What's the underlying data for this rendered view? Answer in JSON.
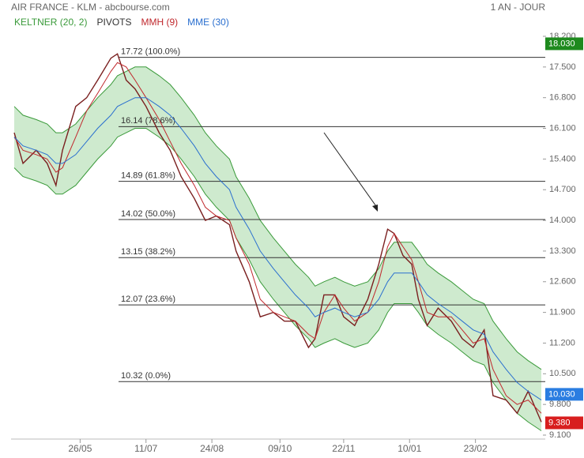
{
  "chart_data": {
    "type": "stock",
    "title": "AIR FRANCE - KLM - abcbourse.com",
    "period": "1 AN - JOUR",
    "xlim": [
      0,
      240
    ],
    "xticks": [
      {
        "value": 30,
        "label": "26/05"
      },
      {
        "value": 60,
        "label": "11/07"
      },
      {
        "value": 90,
        "label": "24/08"
      },
      {
        "value": 121,
        "label": "09/10"
      },
      {
        "value": 150,
        "label": "22/11"
      },
      {
        "value": 180,
        "label": "10/01"
      },
      {
        "value": 210,
        "label": "23/02"
      }
    ],
    "ylim": [
      9.1,
      18.2
    ],
    "yticks": [
      {
        "value": 18.2,
        "label": "18.200"
      },
      {
        "value": 17.5,
        "label": "17.500"
      },
      {
        "value": 16.8,
        "label": "16.800"
      },
      {
        "value": 16.1,
        "label": "16.100"
      },
      {
        "value": 15.4,
        "label": "15.400"
      },
      {
        "value": 14.7,
        "label": "14.700"
      },
      {
        "value": 14.0,
        "label": "14.000"
      },
      {
        "value": 13.3,
        "label": "13.300"
      },
      {
        "value": 12.6,
        "label": "12.600"
      },
      {
        "value": 11.9,
        "label": "11.900"
      },
      {
        "value": 11.2,
        "label": "11.200"
      },
      {
        "value": 10.5,
        "label": "10.500"
      },
      {
        "value": 9.8,
        "label": "9.800"
      },
      {
        "value": 9.1,
        "label": "9.100"
      }
    ],
    "x": [
      0,
      4,
      10,
      15,
      19,
      22,
      28,
      33,
      38,
      44,
      47,
      51,
      55,
      60,
      66,
      71,
      76,
      82,
      87,
      92,
      98,
      101,
      107,
      112,
      118,
      123,
      128,
      134,
      137,
      141,
      146,
      150,
      155,
      161,
      166,
      170,
      173,
      177,
      181,
      184,
      188,
      193,
      199,
      204,
      209,
      214,
      218,
      224,
      229,
      234,
      240
    ],
    "price": {
      "color": "#7a1f1f",
      "values": [
        16.0,
        15.3,
        15.6,
        15.3,
        14.8,
        15.6,
        16.6,
        16.8,
        17.2,
        17.7,
        17.8,
        17.2,
        17.0,
        16.6,
        16.0,
        15.6,
        15.0,
        14.5,
        14.0,
        14.1,
        13.9,
        13.3,
        12.6,
        11.8,
        11.9,
        11.7,
        11.7,
        11.1,
        11.3,
        12.3,
        12.3,
        11.8,
        11.6,
        12.2,
        13.0,
        13.8,
        13.7,
        13.2,
        13.0,
        12.2,
        11.6,
        12.0,
        11.7,
        11.3,
        11.1,
        11.5,
        10.0,
        9.9,
        9.6,
        10.1,
        9.4
      ]
    },
    "series": [
      {
        "name": "KELTNER (20, 2)",
        "color": "#3a9a3a",
        "upper": [
          16.6,
          16.4,
          16.3,
          16.2,
          16.0,
          16.0,
          16.2,
          16.5,
          16.8,
          17.1,
          17.3,
          17.4,
          17.5,
          17.5,
          17.3,
          17.1,
          16.8,
          16.4,
          16.0,
          15.7,
          15.4,
          15.0,
          14.5,
          14.0,
          13.6,
          13.3,
          13.0,
          12.7,
          12.5,
          12.6,
          12.7,
          12.6,
          12.5,
          12.6,
          12.9,
          13.3,
          13.5,
          13.5,
          13.5,
          13.3,
          13.0,
          12.8,
          12.6,
          12.4,
          12.2,
          12.1,
          11.7,
          11.3,
          11.0,
          10.8,
          10.6
        ],
        "lower": [
          15.2,
          15.0,
          14.9,
          14.8,
          14.6,
          14.6,
          14.8,
          15.1,
          15.4,
          15.7,
          15.9,
          16.0,
          16.1,
          16.1,
          15.9,
          15.7,
          15.4,
          15.0,
          14.6,
          14.3,
          14.0,
          13.6,
          13.1,
          12.6,
          12.2,
          11.9,
          11.6,
          11.3,
          11.1,
          11.2,
          11.3,
          11.2,
          11.1,
          11.2,
          11.5,
          11.9,
          12.1,
          12.1,
          12.1,
          11.9,
          11.6,
          11.4,
          11.2,
          11.0,
          10.8,
          10.7,
          10.3,
          9.9,
          9.6,
          9.4,
          9.2
        ]
      },
      {
        "name": "PIVOTS",
        "color": "#333333",
        "levels": [
          {
            "value": 17.72,
            "label": "17.72  (100.0%)"
          },
          {
            "value": 16.14,
            "label": "16.14  (78.6%)"
          },
          {
            "value": 14.89,
            "label": "14.89  (61.8%)"
          },
          {
            "value": 14.02,
            "label": "14.02  (50.0%)"
          },
          {
            "value": 13.15,
            "label": "13.15  (38.2%)"
          },
          {
            "value": 12.07,
            "label": "12.07  (23.6%)"
          },
          {
            "value": 10.32,
            "label": "10.32  (0.0%)"
          }
        ]
      },
      {
        "name": "MMH (9)",
        "color": "#c0282d",
        "values": [
          15.9,
          15.6,
          15.5,
          15.4,
          15.1,
          15.2,
          15.9,
          16.5,
          16.9,
          17.4,
          17.6,
          17.5,
          17.2,
          16.8,
          16.3,
          15.8,
          15.3,
          14.8,
          14.3,
          14.1,
          14.0,
          13.6,
          13.0,
          12.2,
          11.9,
          11.8,
          11.7,
          11.4,
          11.3,
          11.9,
          12.3,
          12.0,
          11.7,
          11.9,
          12.6,
          13.4,
          13.7,
          13.4,
          13.1,
          12.6,
          11.9,
          11.8,
          11.8,
          11.5,
          11.2,
          11.3,
          10.6,
          10.0,
          9.8,
          9.9,
          9.6
        ]
      },
      {
        "name": "MME (30)",
        "color": "#2a6fcf",
        "values": [
          15.9,
          15.7,
          15.6,
          15.5,
          15.3,
          15.3,
          15.5,
          15.8,
          16.1,
          16.4,
          16.6,
          16.7,
          16.8,
          16.8,
          16.6,
          16.4,
          16.1,
          15.7,
          15.3,
          15.0,
          14.7,
          14.3,
          13.8,
          13.3,
          12.9,
          12.6,
          12.3,
          12.0,
          11.8,
          11.9,
          12.0,
          11.9,
          11.8,
          11.9,
          12.2,
          12.6,
          12.8,
          12.8,
          12.8,
          12.6,
          12.3,
          12.1,
          11.9,
          11.7,
          11.5,
          11.4,
          11.0,
          10.6,
          10.3,
          10.1,
          9.9
        ]
      }
    ],
    "badges": [
      {
        "value": 18.03,
        "label": "18.030",
        "color": "#1e8a1e"
      },
      {
        "value": 10.03,
        "label": "10.030",
        "color": "#2a7de1"
      },
      {
        "value": 9.38,
        "label": "9.380",
        "color": "#d81e1e"
      }
    ]
  }
}
